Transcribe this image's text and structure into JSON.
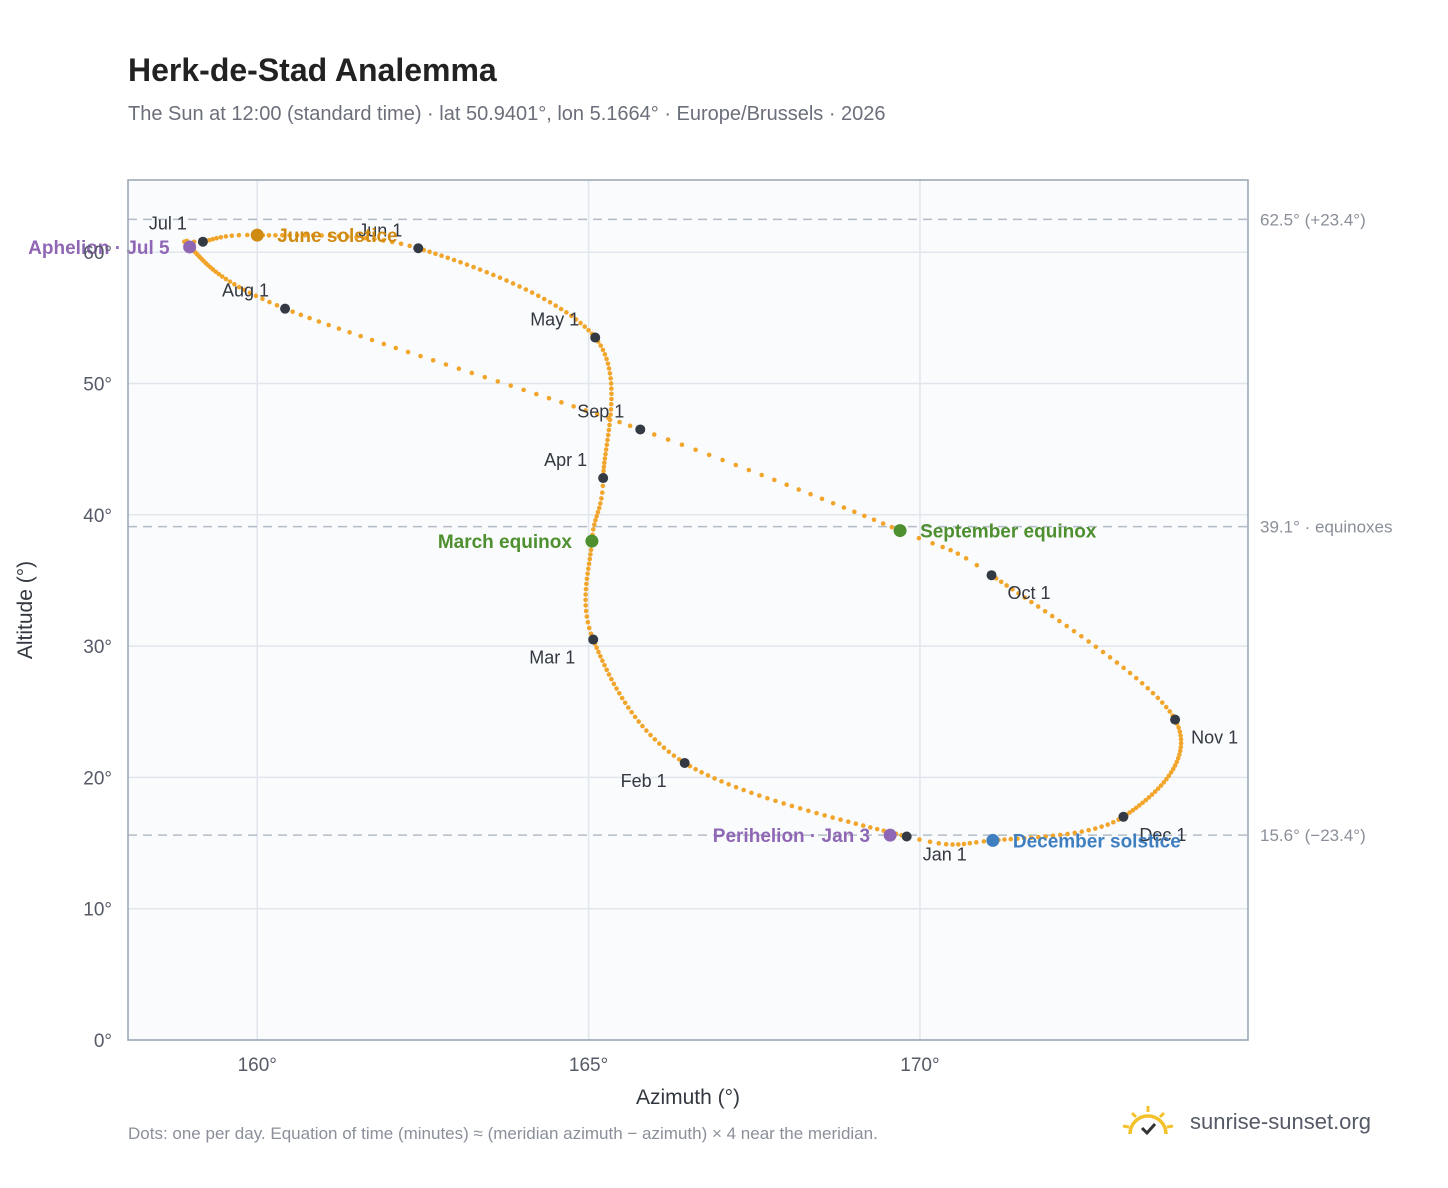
{
  "header": {
    "title": "Herk-de-Stad Analemma",
    "subtitle": "The Sun at 12:00 (standard time) · lat 50.9401°, lon 5.1664° · Europe/Brussels · 2026"
  },
  "footer": {
    "note": "Dots: one per day. Equation of time (minutes) ≈ (meridian azimuth − azimuth) × 4 near the meridian.",
    "brand": "sunrise-sunset.org",
    "brand_icon": "sunrise-logo-icon"
  },
  "colors": {
    "path": "#f2a52b",
    "month_marker": "#343a44",
    "june_solstice": "#d08b12",
    "december_solstice": "#3f7fc0",
    "equinox": "#4e8f2f",
    "apsis": "#8f67b5",
    "reference_line": "#b4bcc7",
    "plot_background": "#f9fbfd",
    "plot_border": "#98a3b1"
  },
  "chart_data": {
    "type": "scatter",
    "xlabel": "Azimuth (°)",
    "ylabel": "Altitude (°)",
    "xlim": [
      158.05,
      174.95
    ],
    "ylim": [
      0,
      65.5
    ],
    "x_ticks": [
      160,
      165,
      170
    ],
    "x_tick_labels": [
      "160°",
      "165°",
      "170°"
    ],
    "y_ticks": [
      0,
      10,
      20,
      30,
      40,
      50,
      60
    ],
    "y_tick_labels": [
      "0°",
      "10°",
      "20°",
      "30°",
      "40°",
      "50°",
      "60°"
    ],
    "grid": true,
    "legend": "none",
    "path_anchors": [
      {
        "doy": 1,
        "az": 169.8,
        "alt": 15.5
      },
      {
        "doy": 32,
        "az": 166.45,
        "alt": 21.1
      },
      {
        "doy": 60,
        "az": 165.07,
        "alt": 30.5
      },
      {
        "doy": 79,
        "az": 165.05,
        "alt": 38.0
      },
      {
        "doy": 91,
        "az": 165.22,
        "alt": 42.8
      },
      {
        "doy": 121,
        "az": 165.1,
        "alt": 53.5
      },
      {
        "doy": 152,
        "az": 162.43,
        "alt": 60.3
      },
      {
        "doy": 172,
        "az": 160.0,
        "alt": 61.3
      },
      {
        "doy": 182,
        "az": 159.18,
        "alt": 60.8
      },
      {
        "doy": 186,
        "az": 158.98,
        "alt": 60.4
      },
      {
        "doy": 213,
        "az": 160.42,
        "alt": 55.7
      },
      {
        "doy": 244,
        "az": 165.78,
        "alt": 46.5
      },
      {
        "doy": 266,
        "az": 169.7,
        "alt": 38.8
      },
      {
        "doy": 274,
        "az": 171.08,
        "alt": 35.4
      },
      {
        "doy": 305,
        "az": 173.85,
        "alt": 24.4
      },
      {
        "doy": 335,
        "az": 173.07,
        "alt": 17.0
      },
      {
        "doy": 355,
        "az": 171.1,
        "alt": 15.2
      },
      {
        "doy": 366,
        "az": 169.8,
        "alt": 15.5
      }
    ],
    "month_markers": [
      {
        "label": "Jan 1",
        "az": 169.8,
        "alt": 15.5,
        "label_pos": "below-right"
      },
      {
        "label": "Feb 1",
        "az": 166.45,
        "alt": 21.1,
        "label_pos": "below-left"
      },
      {
        "label": "Mar 1",
        "az": 165.07,
        "alt": 30.5,
        "label_pos": "below-left"
      },
      {
        "label": "Apr 1",
        "az": 165.22,
        "alt": 42.8,
        "label_pos": "above-left"
      },
      {
        "label": "May 1",
        "az": 165.1,
        "alt": 53.5,
        "label_pos": "above-left"
      },
      {
        "label": "Jun 1",
        "az": 162.43,
        "alt": 60.3,
        "label_pos": "above-left"
      },
      {
        "label": "Jul 1",
        "az": 159.18,
        "alt": 60.8,
        "label_pos": "above-left"
      },
      {
        "label": "Aug 1",
        "az": 160.42,
        "alt": 55.7,
        "label_pos": "above-left"
      },
      {
        "label": "Sep 1",
        "az": 165.78,
        "alt": 46.5,
        "label_pos": "above-left"
      },
      {
        "label": "Oct 1",
        "az": 171.08,
        "alt": 35.4,
        "label_pos": "below-right"
      },
      {
        "label": "Nov 1",
        "az": 173.85,
        "alt": 24.4,
        "label_pos": "below-right"
      },
      {
        "label": "Dec 1",
        "az": 173.07,
        "alt": 17.0,
        "label_pos": "below-right"
      }
    ],
    "events": [
      {
        "label": "June solstice",
        "az": 160.0,
        "alt": 61.3,
        "color_key": "june_solstice",
        "label_side": "right"
      },
      {
        "label": "December solstice",
        "az": 171.1,
        "alt": 15.2,
        "color_key": "december_solstice",
        "label_side": "right"
      },
      {
        "label": "March equinox",
        "az": 165.05,
        "alt": 38.0,
        "color_key": "equinox",
        "label_side": "left"
      },
      {
        "label": "September equinox",
        "az": 169.7,
        "alt": 38.8,
        "color_key": "equinox",
        "label_side": "right"
      },
      {
        "label": "Aphelion · Jul 5",
        "az": 158.98,
        "alt": 60.4,
        "color_key": "apsis",
        "label_side": "left"
      },
      {
        "label": "Perihelion · Jan 3",
        "az": 169.55,
        "alt": 15.6,
        "color_key": "apsis",
        "label_side": "left"
      }
    ],
    "reference_lines": [
      {
        "alt": 62.5,
        "label": "62.5° (+23.4°)"
      },
      {
        "alt": 39.1,
        "label": "39.1° · equinoxes"
      },
      {
        "alt": 15.6,
        "label": "15.6° (−23.4°)"
      }
    ]
  }
}
